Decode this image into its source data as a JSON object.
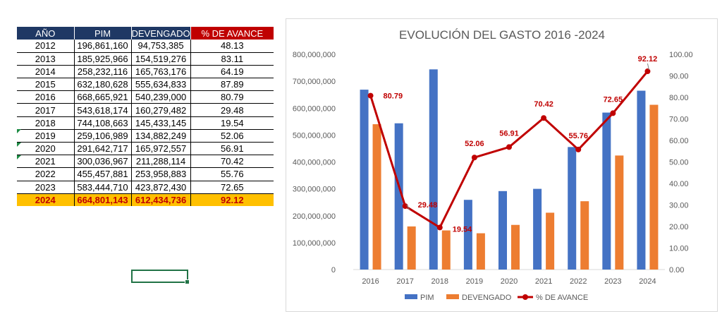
{
  "table": {
    "headers": [
      "AÑO",
      "PIM",
      "DEVENGADO",
      "% DE AVANCE"
    ],
    "rows": [
      [
        "2012",
        "196,861,160",
        "94,753,385",
        "48.13"
      ],
      [
        "2013",
        "185,925,966",
        "154,519,276",
        "83.11"
      ],
      [
        "2014",
        "258,232,116",
        "165,763,176",
        "64.19"
      ],
      [
        "2015",
        "632,180,628",
        "555,634,833",
        "87.89"
      ],
      [
        "2016",
        "668,665,921",
        "540,239,000",
        "80.79"
      ],
      [
        "2017",
        "543,618,174",
        "160,279,482",
        "29.48"
      ],
      [
        "2018",
        "744,108,663",
        "145,433,145",
        "19.54"
      ],
      [
        "2019",
        "259,106,989",
        "134,882,249",
        "52.06"
      ],
      [
        "2020",
        "291,642,717",
        "165,972,557",
        "56.91"
      ],
      [
        "2021",
        "300,036,967",
        "211,288,114",
        "70.42"
      ],
      [
        "2022",
        "455,457,881",
        "253,958,883",
        "55.76"
      ],
      [
        "2023",
        "583,444,710",
        "423,872,430",
        "72.65"
      ]
    ],
    "total_row": [
      "2024",
      "664,801,143",
      "612,434,736",
      "92.12"
    ]
  },
  "chart_data": {
    "type": "bar",
    "title": "EVOLUCIÓN DEL GASTO 2016 -2024",
    "categories": [
      "2016",
      "2017",
      "2018",
      "2019",
      "2020",
      "2021",
      "2022",
      "2023",
      "2024"
    ],
    "series": [
      {
        "name": "PIM",
        "type": "bar",
        "axis": "left",
        "color": "#4472c4",
        "values": [
          668665921,
          543618174,
          744108663,
          259106989,
          291642717,
          300036967,
          455457881,
          583444710,
          664801143
        ]
      },
      {
        "name": "DEVENGADO",
        "type": "bar",
        "axis": "left",
        "color": "#ed7d31",
        "values": [
          540239000,
          160279482,
          145433145,
          134882249,
          165972557,
          211288114,
          253958883,
          423872430,
          612434736
        ]
      },
      {
        "name": "% DE AVANCE",
        "type": "line",
        "axis": "right",
        "color": "#c00000",
        "values": [
          80.79,
          29.48,
          19.54,
          52.06,
          56.91,
          70.42,
          55.76,
          72.65,
          92.12
        ],
        "labels": [
          "80.79",
          "29.48",
          "19.54",
          "52.06",
          "56.91",
          "70.42",
          "55.76",
          "72.65",
          "92.12"
        ]
      }
    ],
    "y_left": {
      "min": 0,
      "max": 800000000,
      "ticks": [
        "0",
        "100,000,000",
        "200,000,000",
        "300,000,000",
        "400,000,000",
        "500,000,000",
        "600,000,000",
        "700,000,000",
        "800,000,000"
      ]
    },
    "y_right": {
      "min": 0,
      "max": 100,
      "ticks": [
        "0.00",
        "10.00",
        "20.00",
        "30.00",
        "40.00",
        "50.00",
        "60.00",
        "70.00",
        "80.00",
        "90.00",
        "100.00"
      ]
    },
    "grid": false,
    "legend_position": "bottom",
    "label_color": "#c00000",
    "error_flag_color": "#1e8c45"
  }
}
